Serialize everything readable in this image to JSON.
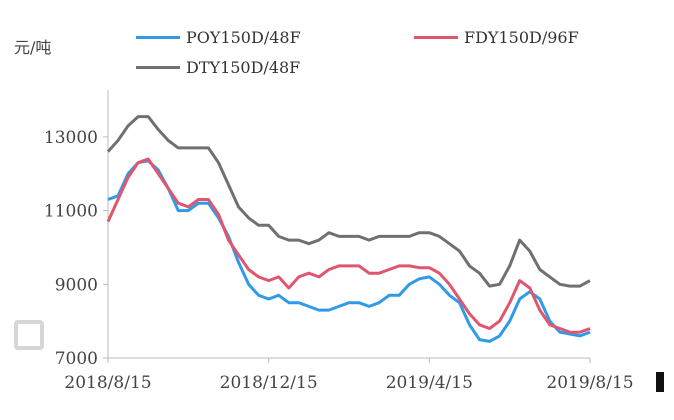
{
  "chart_data": {
    "type": "line",
    "ylabel": "元/吨",
    "ylim": [
      7000,
      14000
    ],
    "yticks": [
      7000,
      9000,
      11000,
      13000
    ],
    "ytick_labels": [
      "7000",
      "9000",
      "11000",
      "13000"
    ],
    "xticks": [
      "2018/8/15",
      "2018/12/15",
      "2019/4/15",
      "2019/8/15"
    ],
    "grid": false,
    "legend_position": "top",
    "series": [
      {
        "name": "POY150D/48F",
        "color": "#2f9be8",
        "values": [
          [
            0,
            11300
          ],
          [
            2,
            11400
          ],
          [
            4,
            12000
          ],
          [
            6,
            12300
          ],
          [
            8,
            12350
          ],
          [
            10,
            12100
          ],
          [
            12,
            11600
          ],
          [
            14,
            11000
          ],
          [
            16,
            11000
          ],
          [
            18,
            11200
          ],
          [
            20,
            11200
          ],
          [
            22,
            10800
          ],
          [
            24,
            10300
          ],
          [
            26,
            9600
          ],
          [
            28,
            9000
          ],
          [
            30,
            8700
          ],
          [
            32,
            8600
          ],
          [
            34,
            8700
          ],
          [
            36,
            8500
          ],
          [
            38,
            8500
          ],
          [
            40,
            8400
          ],
          [
            42,
            8300
          ],
          [
            44,
            8300
          ],
          [
            46,
            8400
          ],
          [
            48,
            8500
          ],
          [
            50,
            8500
          ],
          [
            52,
            8400
          ],
          [
            54,
            8500
          ],
          [
            56,
            8700
          ],
          [
            58,
            8700
          ],
          [
            60,
            9000
          ],
          [
            62,
            9150
          ],
          [
            64,
            9200
          ],
          [
            66,
            9000
          ],
          [
            68,
            8700
          ],
          [
            70,
            8500
          ],
          [
            72,
            7900
          ],
          [
            74,
            7500
          ],
          [
            76,
            7450
          ],
          [
            78,
            7600
          ],
          [
            80,
            8000
          ],
          [
            82,
            8600
          ],
          [
            84,
            8800
          ],
          [
            86,
            8600
          ],
          [
            88,
            8000
          ],
          [
            90,
            7700
          ],
          [
            92,
            7650
          ],
          [
            94,
            7600
          ],
          [
            96,
            7700
          ]
        ]
      },
      {
        "name": "FDY150D/96F",
        "color": "#e0566e",
        "values": [
          [
            0,
            10700
          ],
          [
            2,
            11300
          ],
          [
            4,
            11900
          ],
          [
            6,
            12300
          ],
          [
            8,
            12400
          ],
          [
            10,
            12000
          ],
          [
            12,
            11600
          ],
          [
            14,
            11200
          ],
          [
            16,
            11100
          ],
          [
            18,
            11300
          ],
          [
            20,
            11300
          ],
          [
            22,
            10900
          ],
          [
            24,
            10200
          ],
          [
            26,
            9800
          ],
          [
            28,
            9400
          ],
          [
            30,
            9200
          ],
          [
            32,
            9100
          ],
          [
            34,
            9200
          ],
          [
            36,
            8900
          ],
          [
            38,
            9200
          ],
          [
            40,
            9300
          ],
          [
            42,
            9200
          ],
          [
            44,
            9400
          ],
          [
            46,
            9500
          ],
          [
            48,
            9500
          ],
          [
            50,
            9500
          ],
          [
            52,
            9300
          ],
          [
            54,
            9300
          ],
          [
            56,
            9400
          ],
          [
            58,
            9500
          ],
          [
            60,
            9500
          ],
          [
            62,
            9450
          ],
          [
            64,
            9450
          ],
          [
            66,
            9300
          ],
          [
            68,
            9000
          ],
          [
            70,
            8600
          ],
          [
            72,
            8200
          ],
          [
            74,
            7900
          ],
          [
            76,
            7800
          ],
          [
            78,
            8000
          ],
          [
            80,
            8500
          ],
          [
            82,
            9100
          ],
          [
            84,
            8900
          ],
          [
            86,
            8300
          ],
          [
            88,
            7900
          ],
          [
            90,
            7800
          ],
          [
            92,
            7700
          ],
          [
            94,
            7700
          ],
          [
            96,
            7800
          ]
        ]
      },
      {
        "name": "DTY150D/48F",
        "color": "#707070",
        "values": [
          [
            0,
            12600
          ],
          [
            2,
            12900
          ],
          [
            4,
            13300
          ],
          [
            6,
            13550
          ],
          [
            8,
            13550
          ],
          [
            10,
            13200
          ],
          [
            12,
            12900
          ],
          [
            14,
            12700
          ],
          [
            16,
            12700
          ],
          [
            18,
            12700
          ],
          [
            20,
            12700
          ],
          [
            22,
            12300
          ],
          [
            24,
            11700
          ],
          [
            26,
            11100
          ],
          [
            28,
            10800
          ],
          [
            30,
            10600
          ],
          [
            32,
            10600
          ],
          [
            34,
            10300
          ],
          [
            36,
            10200
          ],
          [
            38,
            10200
          ],
          [
            40,
            10100
          ],
          [
            42,
            10200
          ],
          [
            44,
            10400
          ],
          [
            46,
            10300
          ],
          [
            48,
            10300
          ],
          [
            50,
            10300
          ],
          [
            52,
            10200
          ],
          [
            54,
            10300
          ],
          [
            56,
            10300
          ],
          [
            58,
            10300
          ],
          [
            60,
            10300
          ],
          [
            62,
            10400
          ],
          [
            64,
            10400
          ],
          [
            66,
            10300
          ],
          [
            68,
            10100
          ],
          [
            70,
            9900
          ],
          [
            72,
            9500
          ],
          [
            74,
            9300
          ],
          [
            76,
            8950
          ],
          [
            78,
            9000
          ],
          [
            80,
            9500
          ],
          [
            82,
            10200
          ],
          [
            84,
            9900
          ],
          [
            86,
            9400
          ],
          [
            88,
            9200
          ],
          [
            90,
            9000
          ],
          [
            92,
            8950
          ],
          [
            94,
            8950
          ],
          [
            96,
            9100
          ]
        ]
      }
    ]
  }
}
